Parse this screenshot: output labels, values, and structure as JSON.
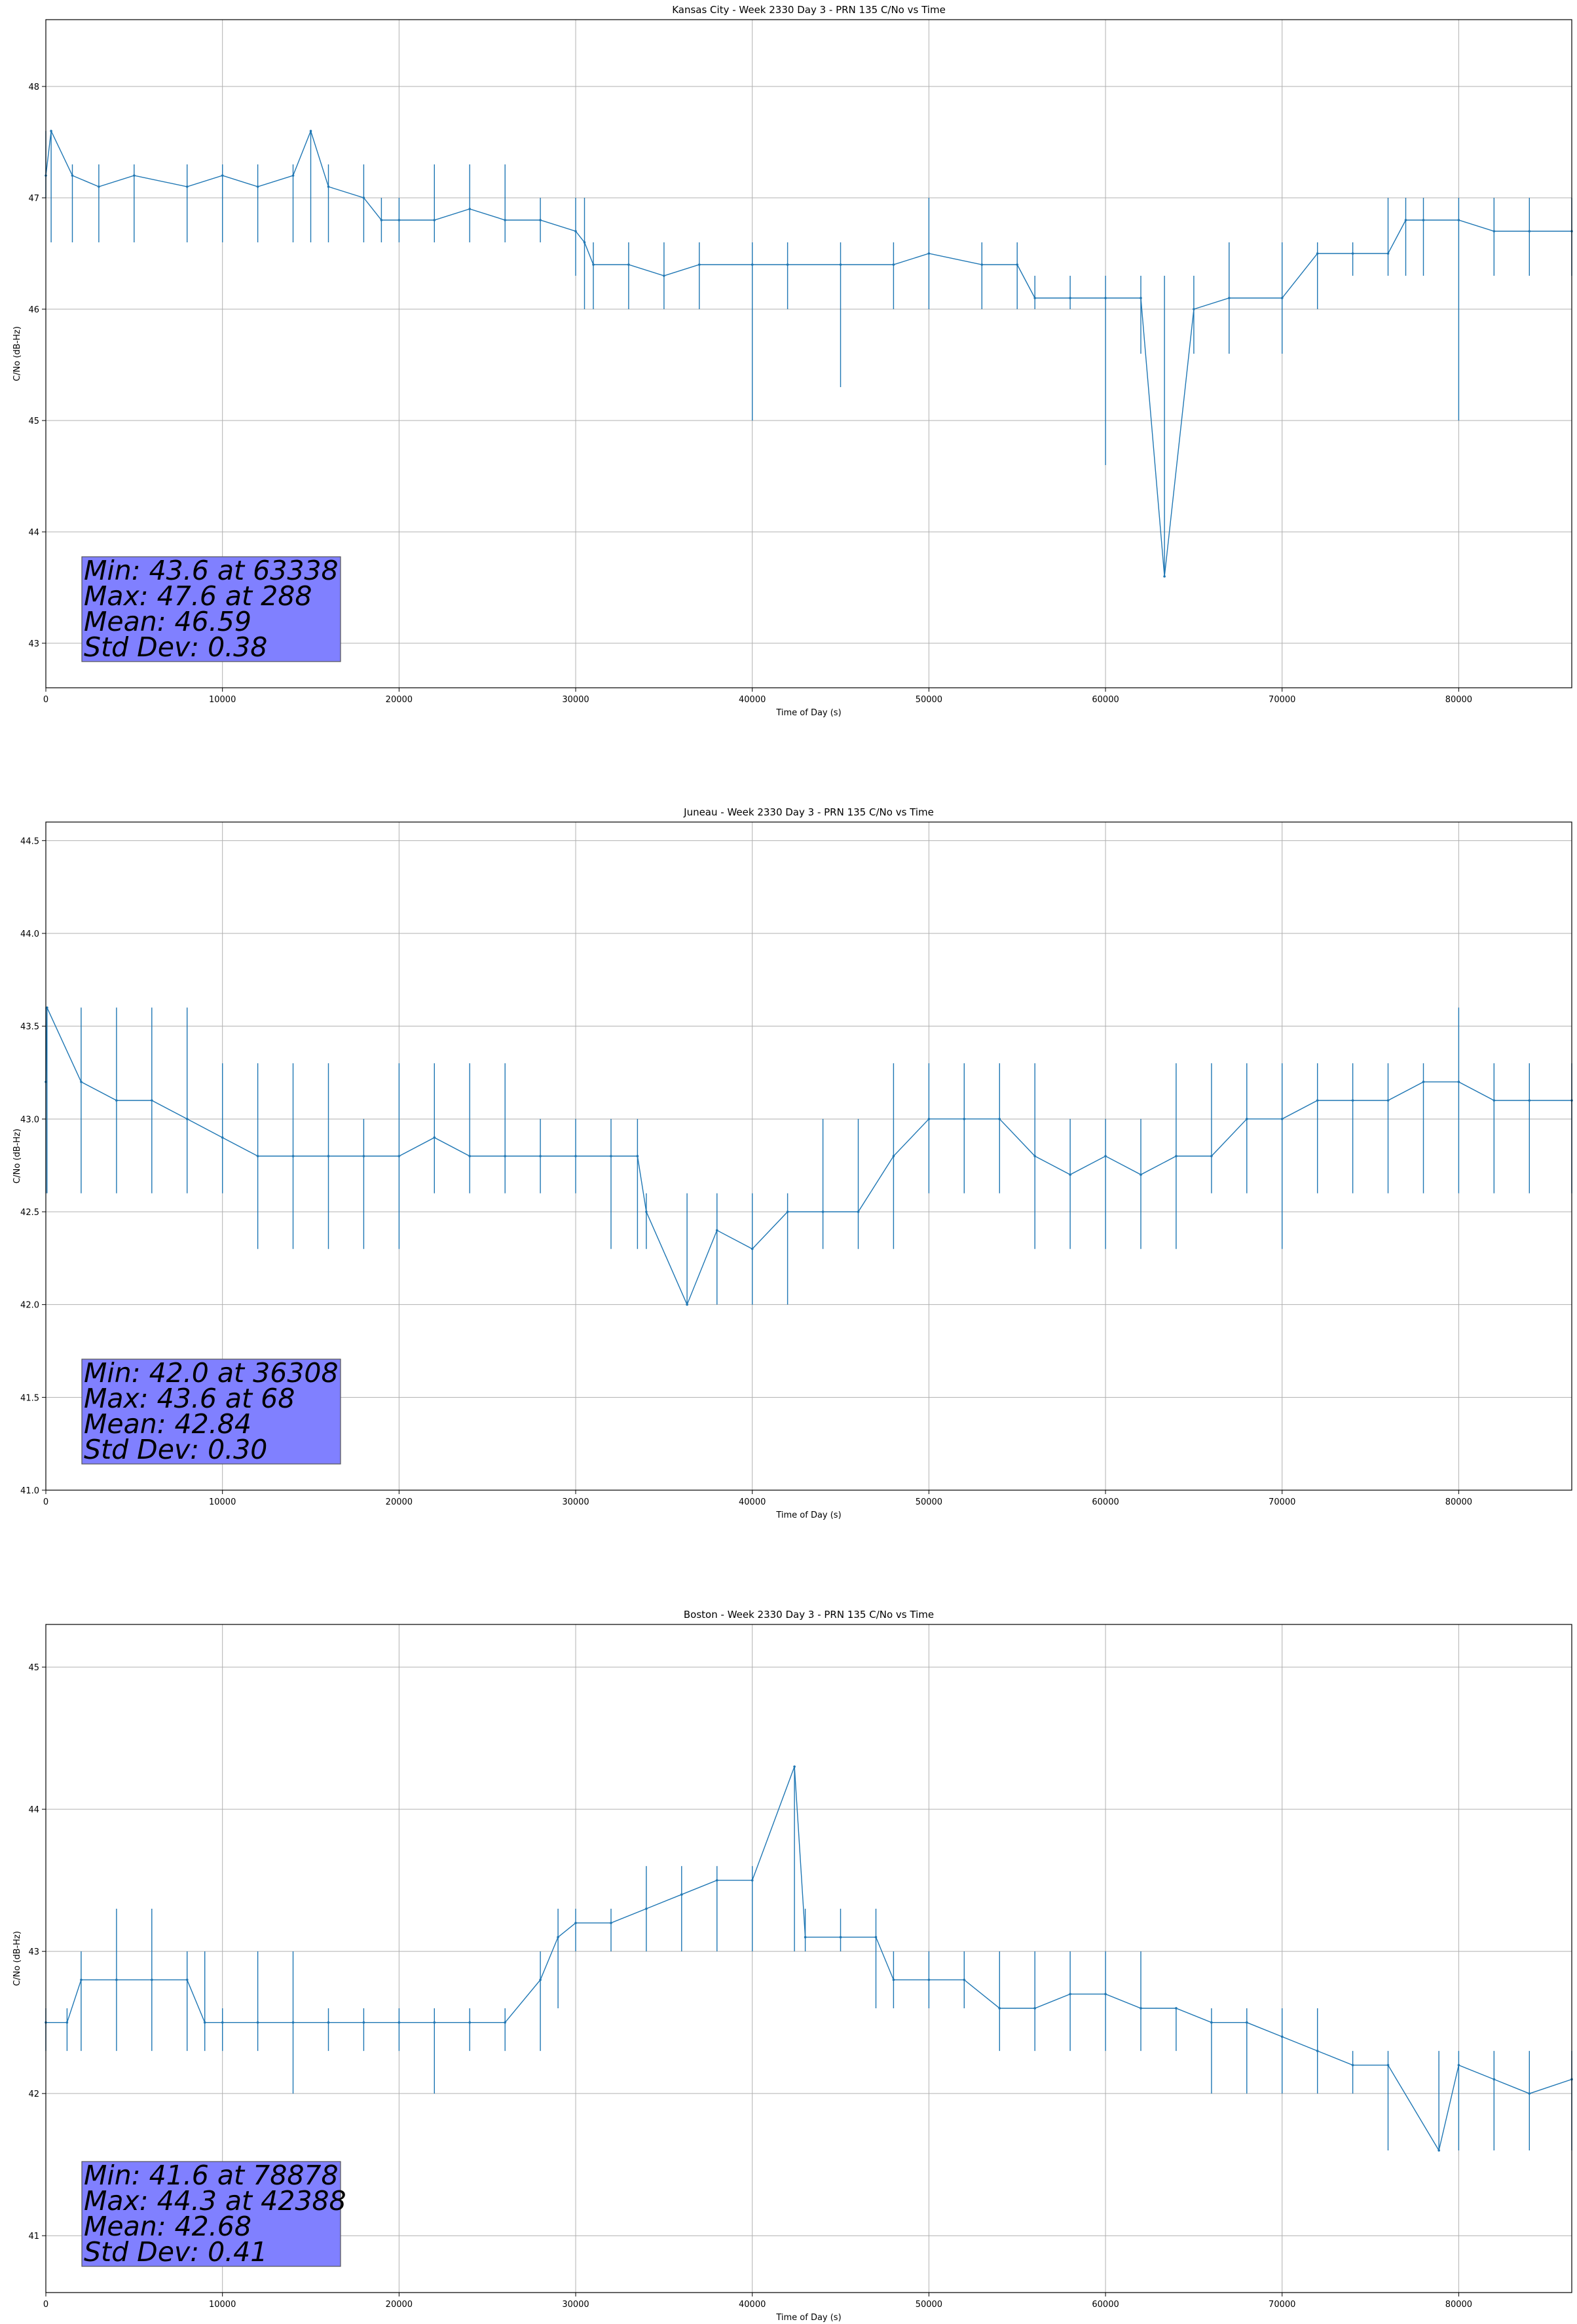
{
  "chart_data": [
    {
      "type": "line",
      "title": "Kansas City - Week 2330 Day 3 - PRN 135 C/No vs Time",
      "xlabel": "Time of Day (s)",
      "ylabel": "C/No (dB-Hz)",
      "xlim": [
        0,
        86400
      ],
      "ylim": [
        42.6,
        48.6
      ],
      "xticks": [
        0,
        10000,
        20000,
        30000,
        40000,
        50000,
        60000,
        70000,
        80000
      ],
      "yticks": [
        43,
        44,
        45,
        46,
        47,
        48
      ],
      "grid": true,
      "stats": [
        "Min: 43.6 at 63338",
        "Max: 47.6 at 288",
        "Mean: 46.59",
        "Std Dev: 0.38"
      ],
      "series": [
        {
          "x": [
            0,
            300,
            1500,
            3000,
            5000,
            8000,
            10000,
            12000,
            14000,
            15000,
            16000,
            18000,
            19000,
            20000,
            22000,
            24000,
            26000,
            28000,
            30000,
            30500,
            31000,
            33000,
            35000,
            37000,
            40000,
            42000,
            45000,
            48000,
            50000,
            53000,
            55000,
            56000,
            58000,
            60000,
            62000,
            63338,
            65000,
            67000,
            70000,
            72000,
            74000,
            76000,
            77000,
            78000,
            80000,
            82000,
            84000,
            86400
          ],
          "values": [
            47.2,
            47.6,
            47.2,
            47.1,
            47.2,
            47.1,
            47.2,
            47.1,
            47.2,
            47.6,
            47.1,
            47.0,
            46.8,
            46.8,
            46.8,
            46.9,
            46.8,
            46.8,
            46.7,
            46.6,
            46.4,
            46.4,
            46.3,
            46.4,
            46.4,
            46.4,
            46.4,
            46.4,
            46.5,
            46.4,
            46.4,
            46.1,
            46.1,
            46.1,
            46.1,
            43.6,
            46.0,
            46.1,
            46.1,
            46.5,
            46.5,
            46.5,
            46.8,
            46.8,
            46.8,
            46.7,
            46.7,
            46.7
          ],
          "min": [
            47.0,
            46.6,
            46.6,
            46.6,
            46.6,
            46.6,
            46.6,
            46.6,
            46.6,
            46.6,
            46.6,
            46.6,
            46.6,
            46.6,
            46.6,
            46.6,
            46.6,
            46.6,
            46.3,
            46.0,
            46.0,
            46.0,
            46.0,
            46.0,
            45.0,
            46.0,
            45.3,
            46.0,
            46.0,
            46.0,
            46.0,
            46.0,
            46.0,
            44.6,
            45.6,
            43.6,
            45.6,
            45.6,
            45.6,
            46.0,
            46.3,
            46.3,
            46.3,
            46.3,
            45.0,
            46.3,
            46.3,
            46.3
          ],
          "max": [
            47.6,
            47.6,
            47.3,
            47.3,
            47.3,
            47.3,
            47.3,
            47.3,
            47.3,
            47.6,
            47.3,
            47.3,
            47.0,
            47.0,
            47.3,
            47.3,
            47.3,
            47.0,
            47.0,
            47.0,
            46.6,
            46.6,
            46.6,
            46.6,
            46.6,
            46.6,
            46.6,
            46.6,
            47.0,
            46.6,
            46.6,
            46.3,
            46.3,
            46.3,
            46.3,
            46.3,
            46.3,
            46.6,
            46.6,
            46.6,
            46.6,
            47.0,
            47.0,
            47.0,
            47.0,
            47.0,
            47.0,
            47.0
          ]
        }
      ]
    },
    {
      "type": "line",
      "title": "Juneau - Week 2330 Day 3 - PRN 135 C/No vs Time",
      "xlabel": "Time of Day (s)",
      "ylabel": "C/No (dB-Hz)",
      "xlim": [
        0,
        86400
      ],
      "ylim": [
        41.0,
        44.6
      ],
      "xticks": [
        0,
        10000,
        20000,
        30000,
        40000,
        50000,
        60000,
        70000,
        80000
      ],
      "yticks": [
        41.0,
        41.5,
        42.0,
        42.5,
        43.0,
        43.5,
        44.0,
        44.5
      ],
      "grid": true,
      "stats": [
        "Min: 42.0 at 36308",
        "Max: 43.6 at 68",
        "Mean: 42.84",
        "Std Dev: 0.30"
      ],
      "series": [
        {
          "x": [
            0,
            68,
            2000,
            4000,
            6000,
            8000,
            10000,
            12000,
            14000,
            16000,
            18000,
            20000,
            22000,
            24000,
            26000,
            28000,
            30000,
            32000,
            33500,
            34000,
            36308,
            38000,
            40000,
            42000,
            44000,
            46000,
            48000,
            50000,
            52000,
            54000,
            56000,
            58000,
            60000,
            62000,
            64000,
            66000,
            68000,
            70000,
            72000,
            74000,
            76000,
            78000,
            80000,
            82000,
            84000,
            86400
          ],
          "values": [
            43.2,
            43.6,
            43.2,
            43.1,
            43.1,
            43.0,
            42.9,
            42.8,
            42.8,
            42.8,
            42.8,
            42.8,
            42.9,
            42.8,
            42.8,
            42.8,
            42.8,
            42.8,
            42.8,
            42.5,
            42.0,
            42.4,
            42.3,
            42.5,
            42.5,
            42.5,
            42.8,
            43.0,
            43.0,
            43.0,
            42.8,
            42.7,
            42.8,
            42.7,
            42.8,
            42.8,
            43.0,
            43.0,
            43.1,
            43.1,
            43.1,
            43.2,
            43.2,
            43.1,
            43.1,
            43.1
          ],
          "min": [
            42.6,
            42.6,
            42.6,
            42.6,
            42.6,
            42.6,
            42.6,
            42.3,
            42.3,
            42.3,
            42.3,
            42.3,
            42.6,
            42.6,
            42.6,
            42.6,
            42.6,
            42.3,
            42.3,
            42.3,
            42.0,
            42.0,
            42.0,
            42.0,
            42.3,
            42.3,
            42.3,
            42.6,
            42.6,
            42.6,
            42.3,
            42.3,
            42.3,
            42.3,
            42.3,
            42.6,
            42.6,
            42.3,
            42.6,
            42.6,
            42.6,
            42.6,
            42.6,
            42.6,
            42.6,
            42.6
          ],
          "max": [
            43.6,
            43.6,
            43.6,
            43.6,
            43.6,
            43.6,
            43.3,
            43.3,
            43.3,
            43.3,
            43.0,
            43.3,
            43.3,
            43.3,
            43.3,
            43.0,
            43.0,
            43.0,
            43.0,
            42.6,
            42.6,
            42.6,
            42.6,
            42.6,
            43.0,
            43.0,
            43.3,
            43.3,
            43.3,
            43.3,
            43.3,
            43.0,
            43.0,
            43.0,
            43.3,
            43.3,
            43.3,
            43.3,
            43.3,
            43.3,
            43.3,
            43.3,
            43.6,
            43.3,
            43.3,
            43.3
          ]
        }
      ]
    },
    {
      "type": "line",
      "title": "Boston - Week 2330 Day 3 - PRN 135 C/No vs Time",
      "xlabel": "Time of Day (s)",
      "ylabel": "C/No (dB-Hz)",
      "xlim": [
        0,
        86400
      ],
      "ylim": [
        40.6,
        45.3
      ],
      "xticks": [
        0,
        10000,
        20000,
        30000,
        40000,
        50000,
        60000,
        70000,
        80000
      ],
      "yticks": [
        41,
        42,
        43,
        44,
        45
      ],
      "grid": true,
      "stats": [
        "Min: 41.6 at 78878",
        "Max: 44.3 at 42388",
        "Mean: 42.68",
        "Std Dev: 0.41"
      ],
      "series": [
        {
          "x": [
            0,
            1200,
            2000,
            4000,
            6000,
            8000,
            9000,
            10000,
            12000,
            14000,
            16000,
            18000,
            20000,
            22000,
            24000,
            26000,
            28000,
            29000,
            30000,
            32000,
            34000,
            36000,
            38000,
            40000,
            42388,
            43000,
            45000,
            47000,
            48000,
            50000,
            52000,
            54000,
            56000,
            58000,
            60000,
            62000,
            64000,
            66000,
            68000,
            70000,
            72000,
            74000,
            76000,
            78878,
            80000,
            82000,
            84000,
            86400
          ],
          "values": [
            42.5,
            42.5,
            42.8,
            42.8,
            42.8,
            42.8,
            42.5,
            42.5,
            42.5,
            42.5,
            42.5,
            42.5,
            42.5,
            42.5,
            42.5,
            42.5,
            42.8,
            43.1,
            43.2,
            43.2,
            43.3,
            43.4,
            43.5,
            43.5,
            44.3,
            43.1,
            43.1,
            43.1,
            42.8,
            42.8,
            42.8,
            42.6,
            42.6,
            42.7,
            42.7,
            42.6,
            42.6,
            42.5,
            42.5,
            42.4,
            42.3,
            42.2,
            42.2,
            41.6,
            42.2,
            42.1,
            42.0,
            42.1
          ],
          "min": [
            42.3,
            42.3,
            42.3,
            42.3,
            42.3,
            42.3,
            42.3,
            42.3,
            42.3,
            42.0,
            42.3,
            42.3,
            42.3,
            42.0,
            42.3,
            42.3,
            42.3,
            42.6,
            43.0,
            43.0,
            43.0,
            43.0,
            43.0,
            43.0,
            43.0,
            43.0,
            43.0,
            42.6,
            42.6,
            42.6,
            42.6,
            42.3,
            42.3,
            42.3,
            42.3,
            42.3,
            42.3,
            42.0,
            42.0,
            42.0,
            42.0,
            42.0,
            41.6,
            41.6,
            41.6,
            41.6,
            41.6,
            41.6
          ],
          "max": [
            42.6,
            42.6,
            43.0,
            43.3,
            43.3,
            43.0,
            43.0,
            42.6,
            43.0,
            43.0,
            42.6,
            42.6,
            42.6,
            42.6,
            42.6,
            42.6,
            43.0,
            43.3,
            43.3,
            43.3,
            43.6,
            43.6,
            43.6,
            43.6,
            44.3,
            43.3,
            43.3,
            43.3,
            43.0,
            43.0,
            43.0,
            43.0,
            43.0,
            43.0,
            43.0,
            43.0,
            42.6,
            42.6,
            42.6,
            42.6,
            42.6,
            42.3,
            42.3,
            42.3,
            42.3,
            42.3,
            42.3,
            42.3
          ]
        }
      ]
    }
  ]
}
